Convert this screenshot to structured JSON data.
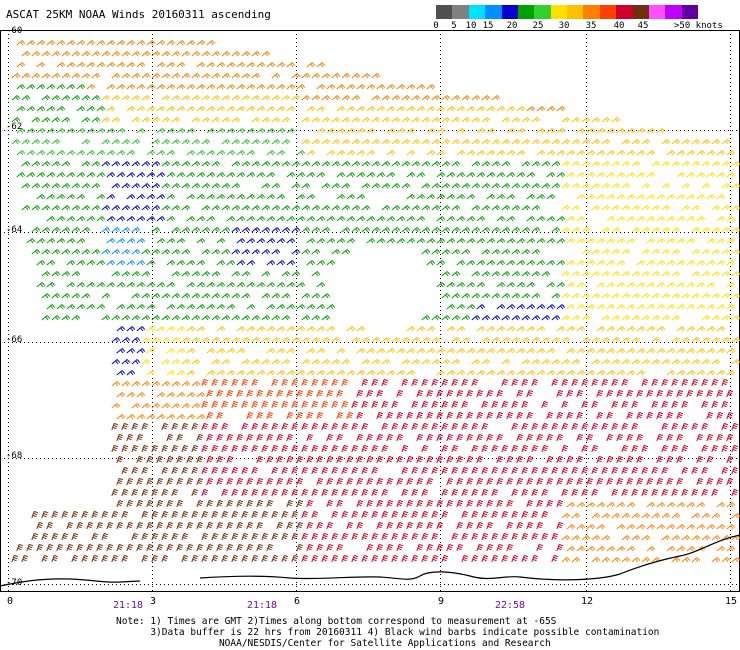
{
  "header": {
    "title": "ASCAT 25KM NOAA Winds 20160311 ascending"
  },
  "legend": {
    "labels": [
      "0",
      "5",
      "10",
      "15",
      "20",
      "25",
      "30",
      "35",
      "40",
      "45",
      ">50 knots"
    ],
    "colors": [
      "#505050",
      "#808080",
      "#00e0ff",
      "#0090ff",
      "#0000d0",
      "#00a000",
      "#30d030",
      "#ffe000",
      "#ffc000",
      "#ff8000",
      "#ff4000",
      "#d0002a",
      "#703010",
      "#ff50ff",
      "#c000ff",
      "#6000a0"
    ]
  },
  "axes": {
    "lat_labels": [
      "-60",
      "-62",
      "-64",
      "-66",
      "-68",
      "-70"
    ],
    "lon_labels": [
      "0",
      "3",
      "6",
      "9",
      "12",
      "15"
    ],
    "time_labels": [
      "21:18",
      "21:18",
      "22:58"
    ]
  },
  "notes": {
    "line1": "Note: 1) Times are GMT 2)Times along bottom correspond to measurement at -65S",
    "line2": "      3)Data buffer is 22 hrs from 20160311 4) Black wind barbs indicate possible contamination",
    "line3": "                  NOAA/NESDIS/Center for Satellite Applications and Research"
  }
}
